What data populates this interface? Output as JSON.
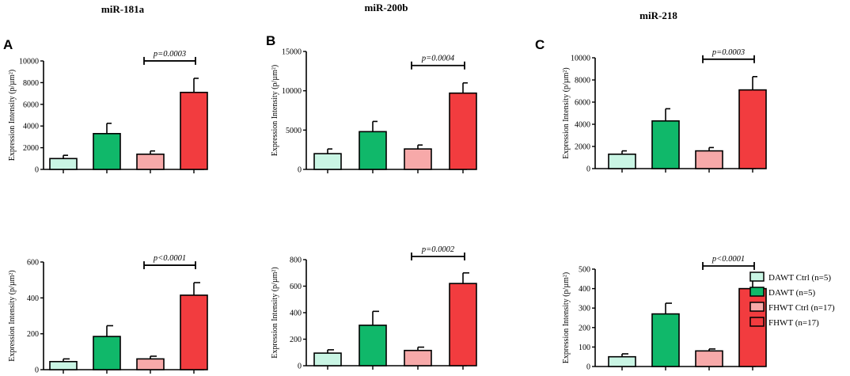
{
  "columns": {
    "titles": [
      "miR-181a",
      "miR-200b",
      "miR-218"
    ],
    "letters": [
      "A",
      "B",
      "C"
    ]
  },
  "legend": {
    "entries": [
      {
        "label": "DAWT Ctrl (n=5)",
        "color": "#c9f5e4"
      },
      {
        "label": "DAWT (n=5)",
        "color": "#10b86a"
      },
      {
        "label": "FHWT Ctrl (n=17)",
        "color": "#f7a9a9"
      },
      {
        "label": "FHWT (n=17)",
        "color": "#f23c3f"
      }
    ]
  },
  "chart_data": [
    {
      "type": "bar",
      "title": "miR-181a",
      "panel": "A",
      "row": "top",
      "ylabel": "Expression Intensity (p/µm²)",
      "categories": [
        "DAWT Ctrl",
        "DAWT",
        "FHWT Ctrl",
        "FHWT"
      ],
      "values": [
        1000,
        3300,
        1400,
        7100
      ],
      "errors": [
        300,
        950,
        300,
        1300
      ],
      "ylim": [
        0,
        10000
      ],
      "yticks": [
        "0",
        "2000",
        "4000",
        "6000",
        "8000",
        "10000"
      ],
      "pvalue": "p=0.0003"
    },
    {
      "type": "bar",
      "title": "miR-200b",
      "panel": "B",
      "row": "top",
      "ylabel": "Expression Intensity (p/µm²)",
      "categories": [
        "DAWT Ctrl",
        "DAWT",
        "FHWT Ctrl",
        "FHWT"
      ],
      "values": [
        2000,
        4800,
        2600,
        9700
      ],
      "errors": [
        600,
        1300,
        500,
        1300
      ],
      "ylim": [
        0,
        15000
      ],
      "yticks": [
        "0",
        "5000",
        "10000",
        "15000"
      ],
      "pvalue": "p=0.0004"
    },
    {
      "type": "bar",
      "title": "miR-218",
      "panel": "C",
      "row": "top",
      "ylabel": "Expression Intensity (p/µm²)",
      "categories": [
        "DAWT Ctrl",
        "DAWT",
        "FHWT Ctrl",
        "FHWT"
      ],
      "values": [
        1300,
        4300,
        1600,
        7100
      ],
      "errors": [
        300,
        1100,
        300,
        1200
      ],
      "ylim": [
        0,
        10000
      ],
      "yticks": [
        "0",
        "2000",
        "4000",
        "6000",
        "8000",
        "10000"
      ],
      "pvalue": "p=0.0003"
    },
    {
      "type": "bar",
      "panel": "A",
      "row": "bottom",
      "ylabel": "Expression Intensity (p/µm²)",
      "categories": [
        "DAWT Ctrl",
        "DAWT",
        "FHWT Ctrl",
        "FHWT"
      ],
      "values": [
        45,
        185,
        60,
        415
      ],
      "errors": [
        15,
        60,
        15,
        70
      ],
      "ylim": [
        0,
        600
      ],
      "yticks": [
        "0",
        "200",
        "400",
        "600"
      ],
      "pvalue": "p<0.0001"
    },
    {
      "type": "bar",
      "panel": "B",
      "row": "bottom",
      "ylabel": "Expression Intensity (p/µm²)",
      "categories": [
        "DAWT Ctrl",
        "DAWT",
        "FHWT Ctrl",
        "FHWT"
      ],
      "values": [
        95,
        305,
        115,
        620
      ],
      "errors": [
        25,
        105,
        25,
        80
      ],
      "ylim": [
        0,
        800
      ],
      "yticks": [
        "0",
        "200",
        "400",
        "600",
        "800"
      ],
      "pvalue": "p=0.0002"
    },
    {
      "type": "bar",
      "panel": "C",
      "row": "bottom",
      "ylabel": "Expression Intensity (p/µm²)",
      "categories": [
        "DAWT Ctrl",
        "DAWT",
        "FHWT Ctrl",
        "FHWT"
      ],
      "values": [
        50,
        270,
        80,
        400
      ],
      "errors": [
        15,
        55,
        10,
        60
      ],
      "ylim": [
        0,
        500
      ],
      "yticks": [
        "0",
        "100",
        "200",
        "300",
        "400",
        "500"
      ],
      "pvalue": "p<0.0001"
    }
  ]
}
